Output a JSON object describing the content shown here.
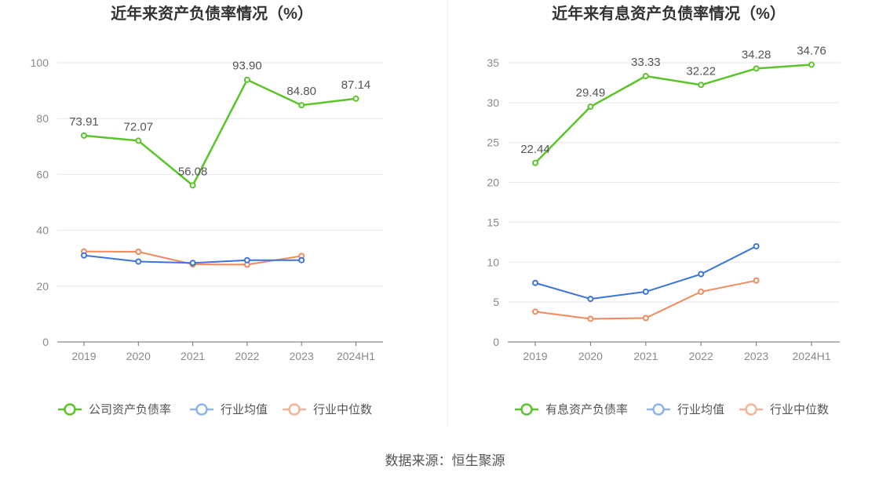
{
  "chart_data": [
    {
      "type": "line",
      "title": "近年来资产负债率情况（%）",
      "categories": [
        "2019",
        "2020",
        "2021",
        "2022",
        "2023",
        "2024H1"
      ],
      "ylim": [
        0,
        100
      ],
      "yticks": [
        0,
        20,
        40,
        60,
        80,
        100
      ],
      "series": [
        {
          "name": "公司资产负债率",
          "color": "#5bc42b",
          "values": [
            73.91,
            72.07,
            56.08,
            93.9,
            84.8,
            87.14
          ],
          "labels": [
            "73.91",
            "72.07",
            "56.08",
            "93.90",
            "84.80",
            "87.14"
          ]
        },
        {
          "name": "行业均值",
          "color": "#3d74db",
          "values": [
            31.0,
            28.8,
            28.3,
            29.3,
            29.3,
            null
          ]
        },
        {
          "name": "行业中位数",
          "color": "#f08a5d",
          "values": [
            32.4,
            32.3,
            27.8,
            27.7,
            30.8,
            null
          ]
        }
      ],
      "legend_position": "bottom"
    },
    {
      "type": "line",
      "title": "近年来有息资产负债率情况（%）",
      "categories": [
        "2019",
        "2020",
        "2021",
        "2022",
        "2023",
        "2024H1"
      ],
      "ylim": [
        0,
        35
      ],
      "yticks": [
        0,
        5,
        10,
        15,
        20,
        25,
        30,
        35
      ],
      "series": [
        {
          "name": "有息资产负债率",
          "color": "#5bc42b",
          "values": [
            22.44,
            29.49,
            33.33,
            32.22,
            34.28,
            34.76
          ],
          "labels": [
            "22.44",
            "29.49",
            "33.33",
            "32.22",
            "34.28",
            "34.76"
          ]
        },
        {
          "name": "行业均值",
          "color": "#3d74db",
          "values": [
            7.4,
            5.4,
            6.3,
            8.5,
            12.0,
            null
          ]
        },
        {
          "name": "行业中位数",
          "color": "#f08a5d",
          "values": [
            3.8,
            2.9,
            3.0,
            6.3,
            7.7,
            null
          ]
        }
      ],
      "legend_position": "bottom"
    }
  ],
  "legend_colors": {
    "primary": "#5bc42b",
    "average": "#8fb3f0",
    "median": "#f5b39a"
  },
  "source": "数据来源：恒生聚源"
}
